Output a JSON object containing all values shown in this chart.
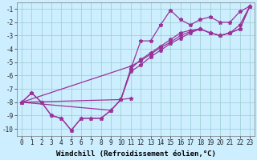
{
  "background_color": "#cceeff",
  "grid_color": "#99cccc",
  "line_color": "#993399",
  "marker": "*",
  "markersize": 3.5,
  "linewidth": 0.9,
  "xlabel": "Windchill (Refroidissement éolien,°C)",
  "xlabel_fontsize": 6.5,
  "xlim": [
    -0.5,
    23.5
  ],
  "ylim": [
    -10.5,
    -0.5
  ],
  "yticks": [
    -10,
    -9,
    -8,
    -7,
    -6,
    -5,
    -4,
    -3,
    -2,
    -1
  ],
  "xticks": [
    0,
    1,
    2,
    3,
    4,
    5,
    6,
    7,
    8,
    9,
    10,
    11,
    12,
    13,
    14,
    15,
    16,
    17,
    18,
    19,
    20,
    21,
    22,
    23
  ],
  "tick_fontsize": 5.5,
  "lines": [
    {
      "x": [
        0,
        1,
        2,
        3,
        4,
        5,
        6,
        7,
        8,
        9,
        10,
        11
      ],
      "y": [
        -8.0,
        -7.3,
        -8.0,
        -9.0,
        -9.2,
        -10.1,
        -9.2,
        -9.2,
        -9.2,
        -8.6,
        -7.8,
        -7.7
      ]
    },
    {
      "x": [
        0,
        1,
        2,
        3,
        4,
        5,
        6,
        7,
        8,
        9,
        10,
        11,
        12,
        13,
        14,
        15,
        16,
        17,
        18,
        19,
        20,
        21,
        22,
        23
      ],
      "y": [
        -8.0,
        -7.3,
        -8.0,
        -9.0,
        -9.2,
        -10.1,
        -9.2,
        -9.2,
        -9.2,
        -8.6,
        -7.8,
        -5.5,
        -3.4,
        -3.4,
        -2.2,
        -1.1,
        -1.8,
        -2.2,
        -1.8,
        -1.6,
        -2.0,
        -2.0,
        -1.2,
        -0.8
      ]
    },
    {
      "x": [
        0,
        10,
        11,
        12,
        13,
        14,
        15,
        16,
        17,
        18,
        19,
        20,
        21,
        22,
        23
      ],
      "y": [
        -8.0,
        -7.8,
        -5.7,
        -5.2,
        -4.6,
        -4.1,
        -3.6,
        -3.2,
        -2.8,
        -2.5,
        -2.8,
        -3.0,
        -2.8,
        -2.5,
        -0.8
      ]
    },
    {
      "x": [
        0,
        11,
        12,
        13,
        14,
        15,
        16,
        17,
        18,
        19,
        20,
        21,
        22,
        23
      ],
      "y": [
        -8.0,
        -5.3,
        -4.9,
        -4.4,
        -3.9,
        -3.5,
        -3.0,
        -2.7,
        -2.5,
        -2.8,
        -3.0,
        -2.8,
        -2.5,
        -0.8
      ]
    },
    {
      "x": [
        0,
        9,
        10,
        11,
        12,
        13,
        14,
        15,
        16,
        17,
        18,
        19,
        20,
        21,
        22,
        23
      ],
      "y": [
        -8.0,
        -8.6,
        -7.8,
        -5.5,
        -4.8,
        -4.3,
        -3.8,
        -3.3,
        -2.8,
        -2.6,
        -2.5,
        -2.8,
        -3.0,
        -2.8,
        -2.2,
        -0.8
      ]
    }
  ]
}
